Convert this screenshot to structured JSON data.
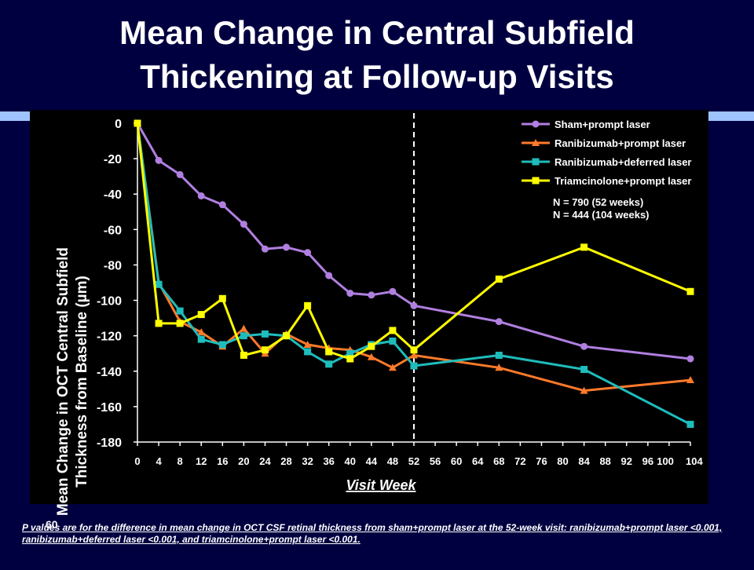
{
  "slide": {
    "title_line1": "Mean Change in Central Subfield",
    "title_line2": "Thickening at Follow-up Visits",
    "page_number": "60",
    "footnote": "P values are for the difference in mean change in OCT CSF retinal thickness from sham+prompt laser at the 52-week visit: ranibizumab+prompt laser <0.001, ranibizumab+deferred laser <0.001, and triamcinolone+prompt laser <0.001."
  },
  "chart_data": {
    "type": "line",
    "title": "",
    "xlabel": "Visit Week",
    "ylabel_line1": "Mean Change in OCT Central Subfield",
    "ylabel_line2": "Thickness from Baseline (µm)",
    "xlim": [
      0,
      104
    ],
    "ylim": [
      -180,
      0
    ],
    "x_ticks": [
      0,
      4,
      8,
      12,
      16,
      20,
      24,
      28,
      32,
      36,
      40,
      44,
      48,
      52,
      56,
      60,
      64,
      68,
      72,
      76,
      80,
      84,
      88,
      92,
      96,
      100,
      104
    ],
    "y_ticks": [
      0,
      -20,
      -40,
      -60,
      -80,
      -100,
      -120,
      -140,
      -160,
      -180
    ],
    "reference_line_x": 52,
    "legend_position": "top-right",
    "annotations": [
      "N = 790 (52 weeks)",
      "N = 444 (104 weeks)"
    ],
    "grid": false,
    "series": [
      {
        "name": "Sham+prompt laser",
        "color": "#b07fe0",
        "marker": "circle",
        "points": [
          [
            0,
            0
          ],
          [
            4,
            -21
          ],
          [
            8,
            -29
          ],
          [
            12,
            -41
          ],
          [
            16,
            -46
          ],
          [
            20,
            -57
          ],
          [
            24,
            -71
          ],
          [
            28,
            -70
          ],
          [
            32,
            -73
          ],
          [
            36,
            -86
          ],
          [
            40,
            -96
          ],
          [
            44,
            -97
          ],
          [
            48,
            -95
          ],
          [
            52,
            -103
          ],
          [
            68,
            -112
          ],
          [
            84,
            -126
          ],
          [
            104,
            -133
          ]
        ]
      },
      {
        "name": "Ranibizumab+prompt laser",
        "color": "#ff7a2a",
        "marker": "triangle",
        "points": [
          [
            0,
            0
          ],
          [
            4,
            -90
          ],
          [
            8,
            -112
          ],
          [
            12,
            -118
          ],
          [
            16,
            -126
          ],
          [
            20,
            -116
          ],
          [
            24,
            -130
          ],
          [
            28,
            -119
          ],
          [
            32,
            -125
          ],
          [
            36,
            -127
          ],
          [
            40,
            -128
          ],
          [
            44,
            -132
          ],
          [
            48,
            -138
          ],
          [
            52,
            -131
          ],
          [
            68,
            -138
          ],
          [
            84,
            -151
          ],
          [
            104,
            -145
          ]
        ]
      },
      {
        "name": "Ranibizumab+deferred laser",
        "color": "#1fbcbc",
        "marker": "square",
        "points": [
          [
            0,
            0
          ],
          [
            4,
            -91
          ],
          [
            8,
            -106
          ],
          [
            12,
            -122
          ],
          [
            16,
            -125
          ],
          [
            20,
            -120
          ],
          [
            24,
            -119
          ],
          [
            28,
            -120
          ],
          [
            32,
            -129
          ],
          [
            36,
            -136
          ],
          [
            40,
            -130
          ],
          [
            44,
            -125
          ],
          [
            48,
            -123
          ],
          [
            52,
            -137
          ],
          [
            68,
            -131
          ],
          [
            84,
            -139
          ],
          [
            104,
            -170
          ]
        ]
      },
      {
        "name": "Triamcinolone+prompt laser",
        "color": "#ffff00",
        "marker": "square",
        "points": [
          [
            0,
            0
          ],
          [
            4,
            -113
          ],
          [
            8,
            -113
          ],
          [
            12,
            -108
          ],
          [
            16,
            -99
          ],
          [
            20,
            -131
          ],
          [
            24,
            -128
          ],
          [
            28,
            -120
          ],
          [
            32,
            -103
          ],
          [
            36,
            -129
          ],
          [
            40,
            -133
          ],
          [
            44,
            -126
          ],
          [
            48,
            -117
          ],
          [
            52,
            -128
          ],
          [
            68,
            -88
          ],
          [
            84,
            -70
          ],
          [
            104,
            -95
          ]
        ]
      }
    ]
  }
}
